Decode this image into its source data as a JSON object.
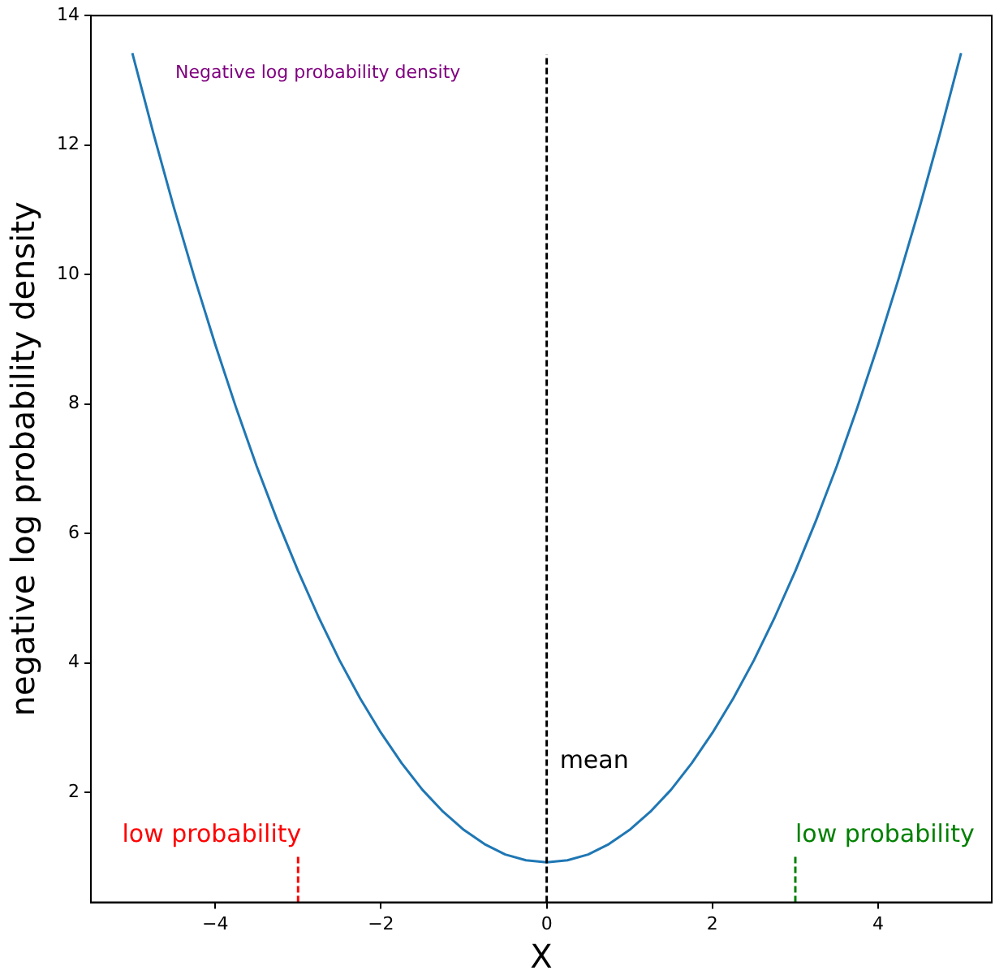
{
  "chart_data": {
    "type": "line",
    "xlabel": "X",
    "ylabel": "negative log probability density",
    "xlim": [
      -5.5,
      5.37
    ],
    "ylim": [
      0.3,
      14
    ],
    "xticks": [
      -4,
      -2,
      0,
      2,
      4
    ],
    "yticks": [
      2,
      4,
      6,
      8,
      10,
      12,
      14
    ],
    "grid": false,
    "legend": false,
    "marker": "none",
    "series": [
      {
        "color": "#1f77b4",
        "line_style": "solid",
        "x": [
          -5,
          -4.75,
          -4.5,
          -4.25,
          -4,
          -3.75,
          -3.5,
          -3.25,
          -3,
          -2.75,
          -2.5,
          -2.25,
          -2,
          -1.75,
          -1.5,
          -1.25,
          -1,
          -0.75,
          -0.5,
          -0.25,
          0,
          0.25,
          0.5,
          0.75,
          1,
          1.25,
          1.5,
          1.75,
          2,
          2.25,
          2.5,
          2.75,
          3,
          3.25,
          3.5,
          3.75,
          4,
          4.25,
          4.5,
          4.75,
          5
        ],
        "values": [
          13.42,
          12.2,
          11.04,
          9.95,
          8.92,
          7.95,
          7.04,
          6.2,
          5.42,
          4.7,
          4.04,
          3.45,
          2.92,
          2.45,
          2.04,
          1.7,
          1.42,
          1.2,
          1.04,
          0.95,
          0.92,
          0.95,
          1.04,
          1.2,
          1.42,
          1.7,
          2.04,
          2.45,
          2.92,
          3.45,
          4.04,
          4.7,
          5.42,
          6.2,
          7.04,
          7.95,
          8.92,
          9.95,
          11.04,
          12.2,
          13.42
        ]
      },
      {
        "name": "low probability",
        "color": "#ff0000",
        "line_style": "dashed",
        "x": [
          -3,
          -3
        ],
        "values": [
          0.3,
          1.05
        ]
      },
      {
        "name": "low probability",
        "color": "#008000",
        "line_style": "dashed",
        "x": [
          3,
          3
        ],
        "values": [
          0.3,
          1.05
        ]
      }
    ],
    "ref_lines": [
      {
        "axis": "x",
        "value": 0,
        "label": "mean",
        "color": "#000000",
        "line_style": "dashed"
      }
    ],
    "annotations": [
      "Negative log probability density"
    ]
  }
}
